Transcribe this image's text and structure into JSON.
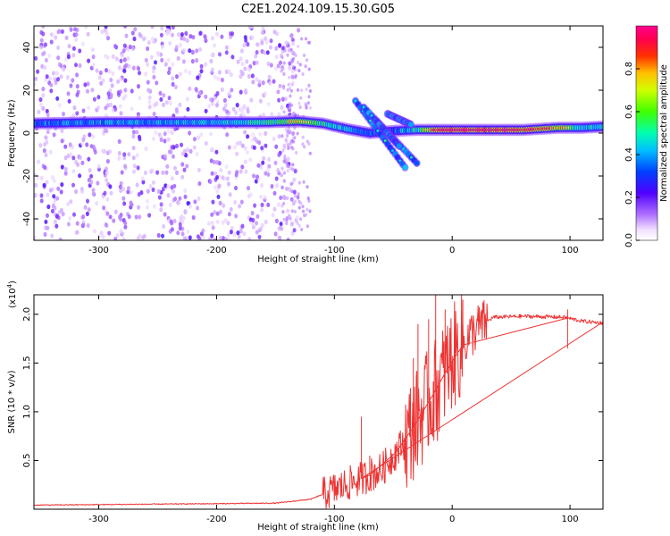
{
  "title": "C2E1.2024.109.15.30.G05",
  "colors": {
    "snr_line": "#ee3333",
    "axis": "#000000"
  },
  "chart_data": [
    {
      "type": "heatmap",
      "name": "spectrogram",
      "xlabel": "Height of straight line (km)",
      "ylabel": "Frequency (Hz)",
      "xlim": [
        -355,
        128
      ],
      "ylim": [
        -50,
        50
      ],
      "xticks": [
        -300,
        -200,
        -100,
        0,
        100
      ],
      "yticks": [
        -40,
        -20,
        0,
        20,
        40
      ],
      "colorbar": {
        "label": "Normalized spectral amplitude",
        "range": [
          0,
          1
        ],
        "ticks": [
          "0.0",
          "0.2",
          "0.4",
          "0.6",
          "0.8"
        ],
        "colormap": "rainbow (white→violet→blue→cyan→green→yellow→red→magenta)"
      },
      "main_band": [
        {
          "x": -355,
          "y": 4.5,
          "a": 0.45
        },
        {
          "x": -300,
          "y": 5.0,
          "a": 0.5
        },
        {
          "x": -250,
          "y": 5.0,
          "a": 0.5
        },
        {
          "x": -200,
          "y": 5.0,
          "a": 0.55
        },
        {
          "x": -160,
          "y": 5.0,
          "a": 0.6
        },
        {
          "x": -130,
          "y": 5.5,
          "a": 0.75
        },
        {
          "x": -110,
          "y": 4.5,
          "a": 0.65
        },
        {
          "x": -90,
          "y": 2.0,
          "a": 0.5
        },
        {
          "x": -70,
          "y": 0.0,
          "a": 0.45
        },
        {
          "x": -50,
          "y": 1.0,
          "a": 0.4
        },
        {
          "x": -30,
          "y": 1.5,
          "a": 0.6
        },
        {
          "x": -10,
          "y": 1.5,
          "a": 0.95
        },
        {
          "x": 20,
          "y": 1.5,
          "a": 0.97
        },
        {
          "x": 60,
          "y": 1.5,
          "a": 0.9
        },
        {
          "x": 90,
          "y": 2.5,
          "a": 0.8
        },
        {
          "x": 110,
          "y": 2.5,
          "a": 0.6
        },
        {
          "x": 128,
          "y": 3.0,
          "a": 0.5
        }
      ],
      "side_tracks": [
        {
          "x0": -82,
          "y0": 15,
          "x1": -40,
          "y1": -16
        },
        {
          "x0": -75,
          "y0": 12,
          "x1": -30,
          "y1": -14
        },
        {
          "x0": -65,
          "y0": 6,
          "x1": -45,
          "y1": -6
        },
        {
          "x0": -55,
          "y0": 9,
          "x1": -35,
          "y1": 4
        }
      ],
      "noise_region": {
        "x": [
          -355,
          -130
        ],
        "y": [
          -50,
          50
        ]
      }
    },
    {
      "type": "line",
      "name": "snr",
      "xlabel": "Height of straight line (km)",
      "ylabel": "SNR (10 * v/v)",
      "scale_label": "(x10",
      "scale_exponent": "4",
      "scale_close": ")",
      "xlim": [
        -355,
        128
      ],
      "ylim": [
        0,
        2.2
      ],
      "xticks": [
        -300,
        -200,
        -100,
        0,
        100
      ],
      "yticks": [
        "0.5",
        "1.0",
        "1.5",
        "2.0"
      ],
      "curve": [
        {
          "x": -355,
          "y": 0.04
        },
        {
          "x": -250,
          "y": 0.05
        },
        {
          "x": -150,
          "y": 0.06
        },
        {
          "x": -120,
          "y": 0.1
        },
        {
          "x": -100,
          "y": 0.2
        },
        {
          "x": -80,
          "y": 0.3
        },
        {
          "x": -60,
          "y": 0.4
        },
        {
          "x": -40,
          "y": 0.7
        },
        {
          "x": -25,
          "y": 1.0
        },
        {
          "x": -10,
          "y": 1.3
        },
        {
          "x": 0,
          "y": 1.55
        },
        {
          "x": 10,
          "y": 1.7
        },
        {
          "x": 20,
          "y": 1.85
        },
        {
          "x": 35,
          "y": 1.97
        },
        {
          "x": 60,
          "y": 1.98
        },
        {
          "x": 95,
          "y": 1.97
        },
        {
          "x": 110,
          "y": 1.93
        },
        {
          "x": 128,
          "y": 1.91
        }
      ],
      "spikes": [
        {
          "x": -77,
          "y": 0.95
        },
        {
          "x": -70,
          "y": 0.55
        },
        {
          "x": -48,
          "y": 0.65
        },
        {
          "x": -33,
          "y": 1.55
        },
        {
          "x": -29,
          "y": 1.9
        },
        {
          "x": -20,
          "y": 1.95
        },
        {
          "x": -14,
          "y": 2.2
        },
        {
          "x": -6,
          "y": 2.05
        },
        {
          "x": 9,
          "y": 2.15
        },
        {
          "x": 98,
          "y": 2.05
        },
        {
          "x": 98,
          "y": 1.65
        }
      ]
    }
  ]
}
